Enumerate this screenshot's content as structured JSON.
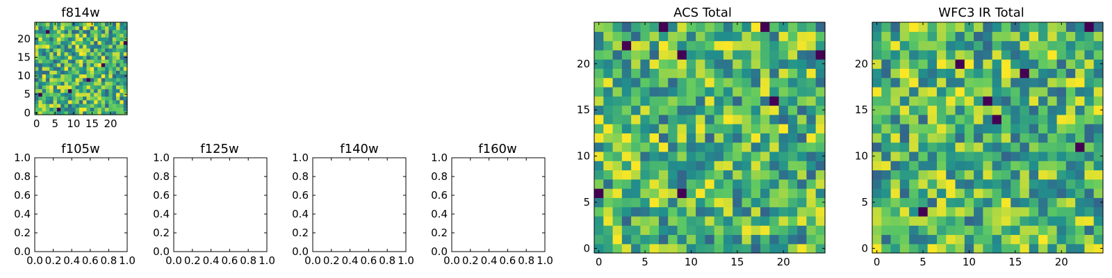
{
  "colors": {
    "background": "#ffffff",
    "frame": "#000000",
    "colormap": "viridis"
  },
  "chart_data": [
    {
      "type": "heatmap",
      "title": "f814w",
      "xlim": [
        0,
        24
      ],
      "ylim": [
        0,
        24
      ],
      "xticks": [
        "0",
        "5",
        "10",
        "15",
        "20"
      ],
      "yticks": [
        "0",
        "5",
        "10",
        "15",
        "20"
      ],
      "z_dark_cells": [
        [
          9,
          6
        ],
        [
          3,
          22
        ],
        [
          18,
          13
        ],
        [
          1,
          5
        ],
        [
          6,
          1
        ],
        [
          14,
          9
        ],
        [
          24,
          19
        ]
      ]
    },
    {
      "type": "empty",
      "title": "f105w",
      "xlim": [
        0,
        1
      ],
      "ylim": [
        0,
        1
      ],
      "xticks": [
        "0.0",
        "0.2",
        "0.4",
        "0.6",
        "0.8",
        "1.0"
      ],
      "yticks": [
        "0.0",
        "0.2",
        "0.4",
        "0.6",
        "0.8",
        "1.0"
      ]
    },
    {
      "type": "empty",
      "title": "f125w",
      "xlim": [
        0,
        1
      ],
      "ylim": [
        0,
        1
      ],
      "xticks": [
        "0.0",
        "0.2",
        "0.4",
        "0.6",
        "0.8",
        "1.0"
      ],
      "yticks": [
        "0.0",
        "0.2",
        "0.4",
        "0.6",
        "0.8",
        "1.0"
      ]
    },
    {
      "type": "empty",
      "title": "f140w",
      "xlim": [
        0,
        1
      ],
      "ylim": [
        0,
        1
      ],
      "xticks": [
        "0.0",
        "0.2",
        "0.4",
        "0.6",
        "0.8",
        "1.0"
      ],
      "yticks": [
        "0.0",
        "0.2",
        "0.4",
        "0.6",
        "0.8",
        "1.0"
      ]
    },
    {
      "type": "empty",
      "title": "f160w",
      "xlim": [
        0,
        1
      ],
      "ylim": [
        0,
        1
      ],
      "xticks": [
        "0.0",
        "0.2",
        "0.4",
        "0.6",
        "0.8",
        "1.0"
      ],
      "yticks": [
        "0.0",
        "0.2",
        "0.4",
        "0.6",
        "0.8",
        "1.0"
      ]
    },
    {
      "type": "heatmap",
      "title": "ACS Total",
      "xlim": [
        0,
        24
      ],
      "ylim": [
        0,
        24
      ],
      "xticks": [
        "0",
        "5",
        "10",
        "15",
        "20"
      ],
      "yticks": [
        "0",
        "5",
        "10",
        "15",
        "20"
      ],
      "z_dark_cells": [
        [
          3,
          22
        ],
        [
          9,
          21
        ],
        [
          24,
          21
        ],
        [
          0,
          6
        ],
        [
          9,
          6
        ],
        [
          19,
          16
        ],
        [
          7,
          24
        ],
        [
          18,
          24
        ]
      ]
    },
    {
      "type": "heatmap",
      "title": "WFC3 IR Total",
      "xlim": [
        0,
        24
      ],
      "ylim": [
        0,
        24
      ],
      "xticks": [
        "0",
        "5",
        "10",
        "15",
        "20"
      ],
      "yticks": [
        "0",
        "5",
        "10",
        "15",
        "20"
      ],
      "z_dark_cells": [
        [
          9,
          20
        ],
        [
          16,
          19
        ],
        [
          12,
          16
        ],
        [
          13,
          14
        ],
        [
          22,
          11
        ],
        [
          5,
          4
        ],
        [
          23,
          24
        ]
      ]
    }
  ]
}
